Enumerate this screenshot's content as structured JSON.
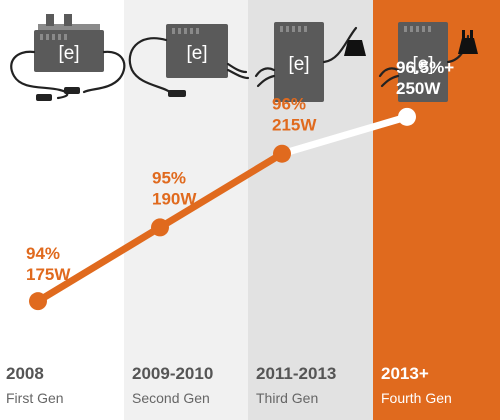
{
  "colors": {
    "accent": "#e06a1e",
    "col1_bg": "#ffffff",
    "col2_bg": "#f1f1f1",
    "col3_bg": "#e2e2e2",
    "col4_bg": "#e06a1e",
    "device": "#5a5a5a",
    "year_text": "#555555",
    "gen_text": "#666666",
    "highlight_text": "#ffffff"
  },
  "chart_data": {
    "type": "line",
    "title": "",
    "xlabel": "",
    "ylabel": "",
    "ylim": [
      93.5,
      97
    ],
    "categories": [
      "2008",
      "2009-2010",
      "2011-2013",
      "2013+"
    ],
    "generations": [
      "First Gen",
      "Second Gen",
      "Third Gen",
      "Fourth Gen"
    ],
    "efficiency": [
      94,
      95,
      96,
      96.5
    ],
    "data_labels": [
      {
        "percent": "94%",
        "power": "175W"
      },
      {
        "percent": "95%",
        "power": "190W"
      },
      {
        "percent": "96%",
        "power": "215W"
      },
      {
        "percent": "96.5%+",
        "power": "250W"
      }
    ],
    "device_logo": "[e]",
    "device_icons": [
      "microinverter-gen1-icon",
      "microinverter-gen2-icon",
      "microinverter-gen3-icon",
      "microinverter-gen4-icon"
    ]
  }
}
